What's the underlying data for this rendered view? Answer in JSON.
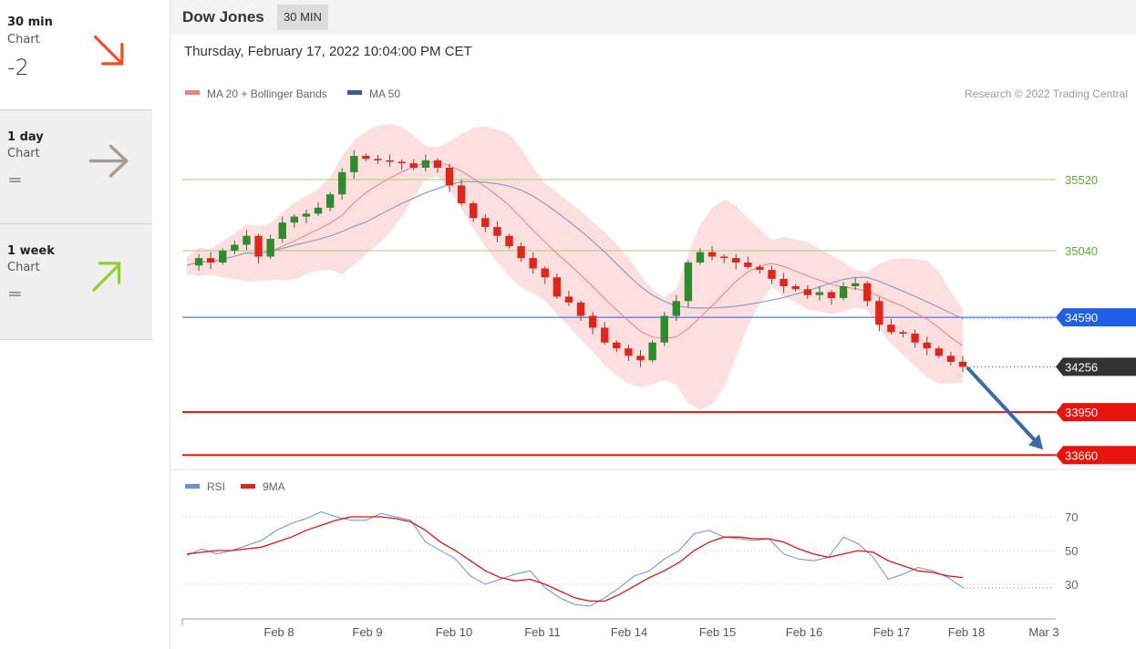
{
  "sidebar": {
    "cards": [
      {
        "title": "30 min",
        "subtitle": "Chart",
        "value": "-2",
        "arrow": "down-right-arrow-icon",
        "arrow_color": "#f04e23"
      },
      {
        "title": "1 day",
        "subtitle": "Chart",
        "value": "=",
        "arrow": "right-arrow-icon",
        "arrow_color": "#a89a8c"
      },
      {
        "title": "1 week",
        "subtitle": "Chart",
        "value": "=",
        "arrow": "up-right-arrow-icon",
        "arrow_color": "#8fd12a"
      }
    ]
  },
  "header": {
    "title": "Dow Jones",
    "badge": "30 MIN"
  },
  "datetime": "Thursday, February 17, 2022 10:04:00 PM CET",
  "legend": {
    "ma20": "MA 20 + Bollinger Bands",
    "ma50": "MA 50",
    "rsi": "RSI",
    "ma9": "9MA"
  },
  "copyright": "Research © 2022 Trading Central",
  "colors": {
    "up": "#2e8b2e",
    "down": "#e0261b",
    "ma20": "#f08080",
    "ma50": "#3a5a9c",
    "resistance": "#9ed36a",
    "pivot": "#1e5fe6",
    "support": "#e8130c",
    "rsi": "#6b8fe0",
    "band": "#fdd7d7"
  },
  "chart_data": [
    {
      "type": "candlestick",
      "title": "Dow Jones",
      "x_dates": [
        "Feb 8",
        "Feb 9",
        "Feb 10",
        "Feb 11",
        "Feb 14",
        "Feb 15",
        "Feb 16",
        "Feb 17",
        "Feb 18",
        "Mar 3"
      ],
      "ylim": [
        33600,
        35920
      ],
      "levels": [
        {
          "label": "35520",
          "value": 35520,
          "kind": "resistance"
        },
        {
          "label": "35040",
          "value": 35040,
          "kind": "resistance"
        },
        {
          "label": "34590",
          "value": 34590,
          "kind": "pivot"
        },
        {
          "label": "34256",
          "value": 34256,
          "kind": "last"
        },
        {
          "label": "33950",
          "value": 33950,
          "kind": "support"
        },
        {
          "label": "33660",
          "value": 33660,
          "kind": "support"
        }
      ],
      "close_path": [
        34940,
        34990,
        34960,
        35040,
        35080,
        35140,
        35000,
        35120,
        35230,
        35270,
        35290,
        35330,
        35420,
        35570,
        35680,
        35660,
        35650,
        35640,
        35630,
        35600,
        35650,
        35600,
        35480,
        35360,
        35260,
        35200,
        35140,
        35070,
        34990,
        34920,
        34860,
        34730,
        34690,
        34600,
        34520,
        34420,
        34380,
        34330,
        34300,
        34420,
        34600,
        34700,
        34960,
        35030,
        35000,
        34990,
        34960,
        34930,
        34910,
        34850,
        34800,
        34780,
        34740,
        34760,
        34720,
        34800,
        34820,
        34700,
        34540,
        34490,
        34480,
        34420,
        34380,
        34330,
        34290,
        34256
      ],
      "forecast_target": 33660
    },
    {
      "type": "line",
      "title": "RSI",
      "series": [
        {
          "name": "RSI"
        },
        {
          "name": "9MA"
        }
      ],
      "y_ticks": [
        30,
        50,
        70
      ],
      "rsi": [
        47,
        51,
        48,
        50,
        53,
        56,
        62,
        66,
        69,
        73,
        70,
        68,
        68,
        72,
        70,
        68,
        55,
        50,
        45,
        35,
        30,
        33,
        36,
        38,
        28,
        22,
        18,
        17,
        22,
        28,
        35,
        38,
        45,
        50,
        60,
        62,
        58,
        57,
        56,
        57,
        48,
        45,
        44,
        46,
        58,
        54,
        46,
        33,
        36,
        40,
        38,
        34,
        28
      ],
      "ma9": [
        48,
        49,
        50,
        50,
        51,
        52,
        55,
        58,
        62,
        65,
        68,
        70,
        70,
        70,
        69,
        67,
        62,
        55,
        50,
        44,
        38,
        34,
        32,
        33,
        30,
        26,
        22,
        20,
        20,
        24,
        29,
        34,
        38,
        43,
        50,
        55,
        58,
        58,
        57,
        57,
        55,
        51,
        48,
        46,
        48,
        50,
        49,
        44,
        41,
        38,
        37,
        35,
        34
      ]
    }
  ]
}
